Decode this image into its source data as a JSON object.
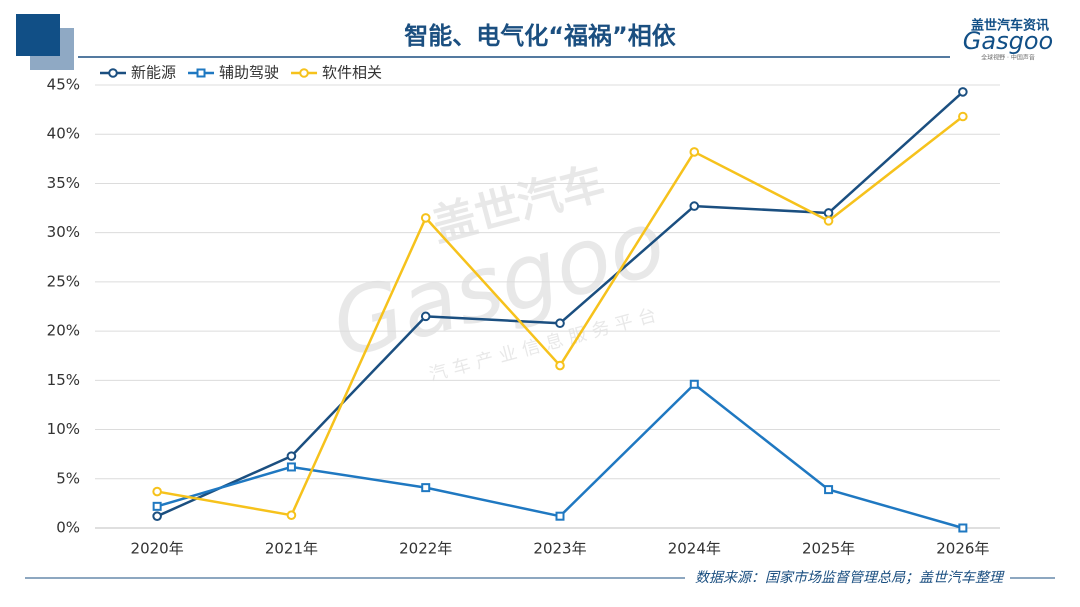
{
  "chart_data": {
    "type": "line",
    "title": "智能、电气化“福祸”相依",
    "source": "数据来源：国家市场监督管理总局；盖世汽车整理",
    "logo": {
      "brand": "盖世汽车资讯",
      "name": "Gasgoo",
      "slogan": "全球视野 · 中国声音"
    },
    "watermark": {
      "brand": "盖世汽车",
      "name": "Gasgoo",
      "slogan": "汽车产业信息服务平台"
    },
    "categories": [
      "2020年",
      "2021年",
      "2022年",
      "2023年",
      "2024年",
      "2025年",
      "2026年"
    ],
    "series": [
      {
        "name": "新能源",
        "color": "#1b4f80",
        "marker": "circle",
        "values": [
          1.2,
          7.3,
          21.5,
          20.8,
          32.7,
          32.0,
          44.3
        ]
      },
      {
        "name": "辅助驾驶",
        "color": "#1f78c1",
        "marker": "square",
        "values": [
          2.2,
          6.2,
          4.1,
          1.2,
          14.6,
          3.9,
          0
        ]
      },
      {
        "name": "软件相关",
        "color": "#f6c21c",
        "marker": "circle",
        "values": [
          3.7,
          1.3,
          31.5,
          16.5,
          38.2,
          31.2,
          41.8
        ]
      }
    ],
    "ylim": [
      0,
      45
    ],
    "yticks": [
      {
        "value": 0,
        "label": "0%"
      },
      {
        "value": 5,
        "label": "5%"
      },
      {
        "value": 10,
        "label": "10%"
      },
      {
        "value": 15,
        "label": "15%"
      },
      {
        "value": 20,
        "label": "20%"
      },
      {
        "value": 25,
        "label": "25%"
      },
      {
        "value": 30,
        "label": "30%"
      },
      {
        "value": 35,
        "label": "35%"
      },
      {
        "value": 40,
        "label": "40%"
      },
      {
        "value": 45,
        "label": "45%"
      }
    ],
    "grid": true,
    "legend": "top-left"
  }
}
